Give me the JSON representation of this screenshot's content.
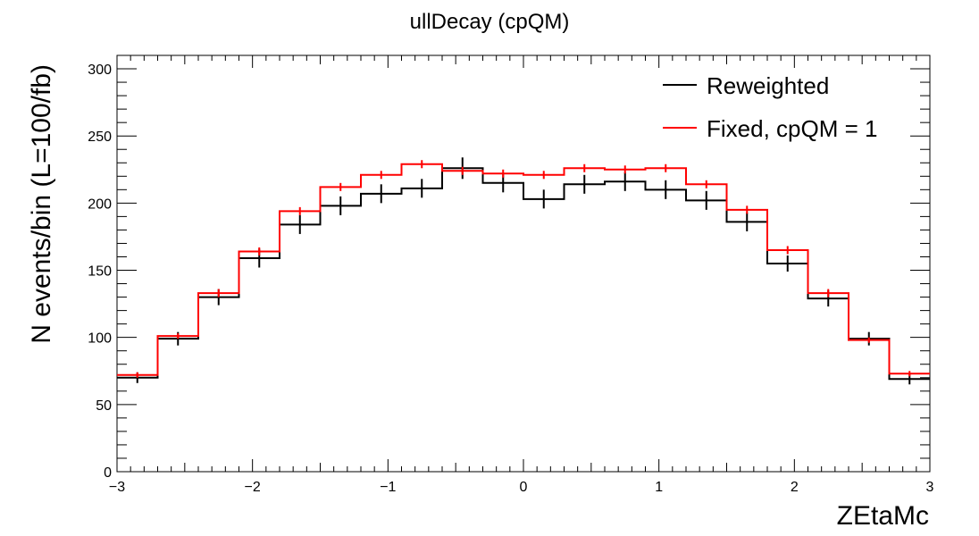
{
  "chart_data": {
    "type": "histogram",
    "title": "ullDecay (cpQM)",
    "xlabel": "ZEtaMc",
    "ylabel": "N events/bin (L=100/fb)",
    "xlim": [
      -3,
      3
    ],
    "ylim": [
      0,
      310
    ],
    "x_ticks": [
      -3,
      -2,
      -1,
      0,
      1,
      2,
      3
    ],
    "x_tick_labels": [
      "−3",
      "−2",
      "−1",
      "0",
      "1",
      "2",
      "3"
    ],
    "y_ticks": [
      0,
      50,
      100,
      150,
      200,
      250,
      300
    ],
    "y_tick_labels": [
      "0",
      "50",
      "100",
      "150",
      "200",
      "250",
      "300"
    ],
    "bin_edges": [
      -3.0,
      -2.7,
      -2.4,
      -2.1,
      -1.8,
      -1.5,
      -1.2,
      -0.9,
      -0.6,
      -0.3,
      0.0,
      0.3,
      0.6,
      0.9,
      1.2,
      1.5,
      1.8,
      2.1,
      2.4,
      2.7,
      3.0
    ],
    "legend_position": "top-right",
    "series": [
      {
        "name": "Reweighted",
        "color": "#000000",
        "values": [
          70,
          99,
          130,
          159,
          184,
          198,
          207,
          211,
          226,
          215,
          203,
          214,
          216,
          210,
          202,
          186,
          155,
          129,
          99,
          69
        ],
        "errors": [
          4,
          5,
          6,
          7,
          7,
          7,
          7,
          7,
          8,
          7,
          7,
          7,
          7,
          7,
          7,
          7,
          6,
          6,
          5,
          4
        ]
      },
      {
        "name": "Fixed, cpQM = 1",
        "color": "#ff0000",
        "values": [
          72,
          101,
          133,
          164,
          194,
          212,
          221,
          229,
          224,
          222,
          221,
          226,
          225,
          226,
          214,
          195,
          165,
          133,
          98,
          73
        ],
        "errors": [
          2,
          2,
          3,
          3,
          3,
          3,
          3,
          3,
          3,
          3,
          3,
          3,
          3,
          3,
          3,
          3,
          3,
          3,
          2,
          2
        ]
      }
    ]
  }
}
